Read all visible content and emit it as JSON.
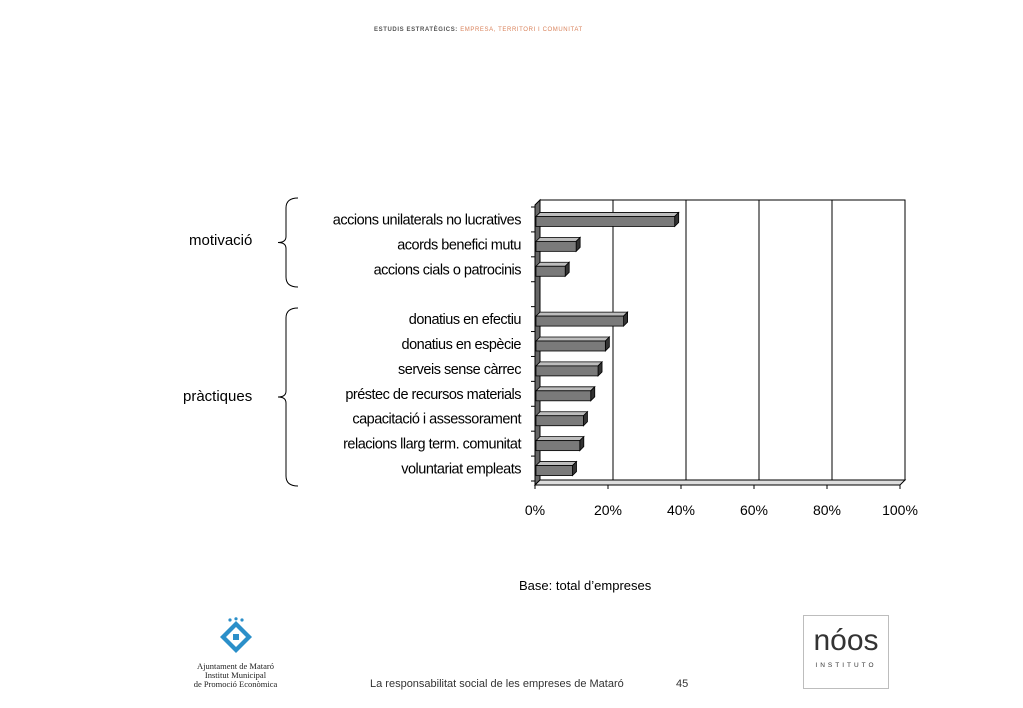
{
  "header": {
    "part1": "ESTUDIS ESTRATÈGICS:",
    "part2": "EMPRESA, TERRITORI I COMUNITAT"
  },
  "chart_data": {
    "type": "bar",
    "orientation": "horizontal",
    "title": "",
    "xlabel": "",
    "ylabel": "",
    "xlim": [
      0,
      100
    ],
    "x_tick_labels": [
      "0%",
      "20%",
      "40%",
      "60%",
      "80%",
      "100%"
    ],
    "x_ticks": [
      0,
      20,
      40,
      60,
      80,
      100
    ],
    "categories": [
      "accions unilaterals no lucratives",
      "acords benefici mutu",
      "accions cials o patrocinis",
      "",
      "donatius en efectiu",
      "donatius en espècie",
      "serveis sense càrrec",
      "préstec de recursos materials",
      "capacitació i assessorament",
      "relacions llarg term. comunitat",
      "voluntariat empleats"
    ],
    "values": [
      38,
      11,
      8,
      null,
      24,
      19,
      17,
      15,
      13,
      12,
      10
    ],
    "groups": [
      {
        "label": "motivació",
        "from": 0,
        "to": 2
      },
      {
        "label": "pràctiques",
        "from": 4,
        "to": 10
      }
    ],
    "bar_color": "#7a7a7a",
    "grid": true
  },
  "base_note": "Base: total d’empreses",
  "footer": {
    "text": "La responsabilitat social de les empreses de Mataró",
    "page": "45",
    "left_logo_lines": [
      "Ajuntament de Mataró",
      "Institut Municipal",
      "de Promoció Econòmica"
    ],
    "right_logo_big": "nóos",
    "right_logo_small": "INSTITUTO"
  }
}
